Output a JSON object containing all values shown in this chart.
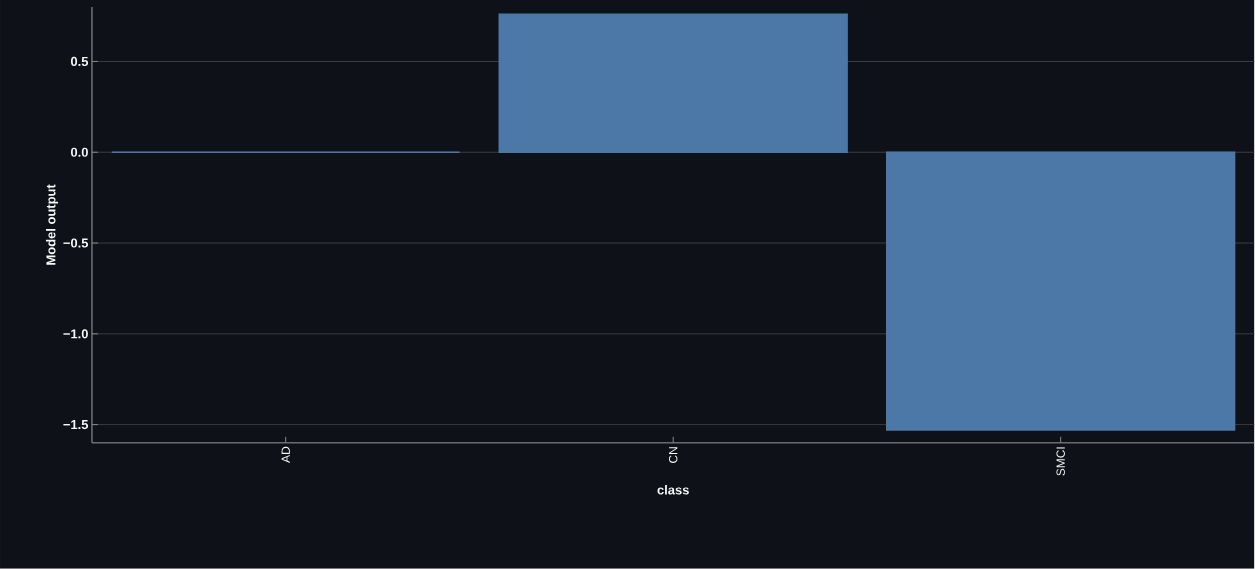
{
  "chart_data": {
    "type": "bar",
    "xlabel": "class",
    "ylabel": "Model output",
    "categories": [
      "AD",
      "CN",
      "SMCI"
    ],
    "values": [
      0,
      0.76,
      -1.53
    ],
    "color": "#4c78a8",
    "ylim": [
      -1.6,
      0.8
    ],
    "yticks": [
      {
        "value": -1.5,
        "label": "−1.5"
      },
      {
        "value": -1,
        "label": "−1.0"
      },
      {
        "value": -0.5,
        "label": "−0.5"
      },
      {
        "value": 0,
        "label": "0.0"
      },
      0.5
    ],
    "grid": "y"
  }
}
